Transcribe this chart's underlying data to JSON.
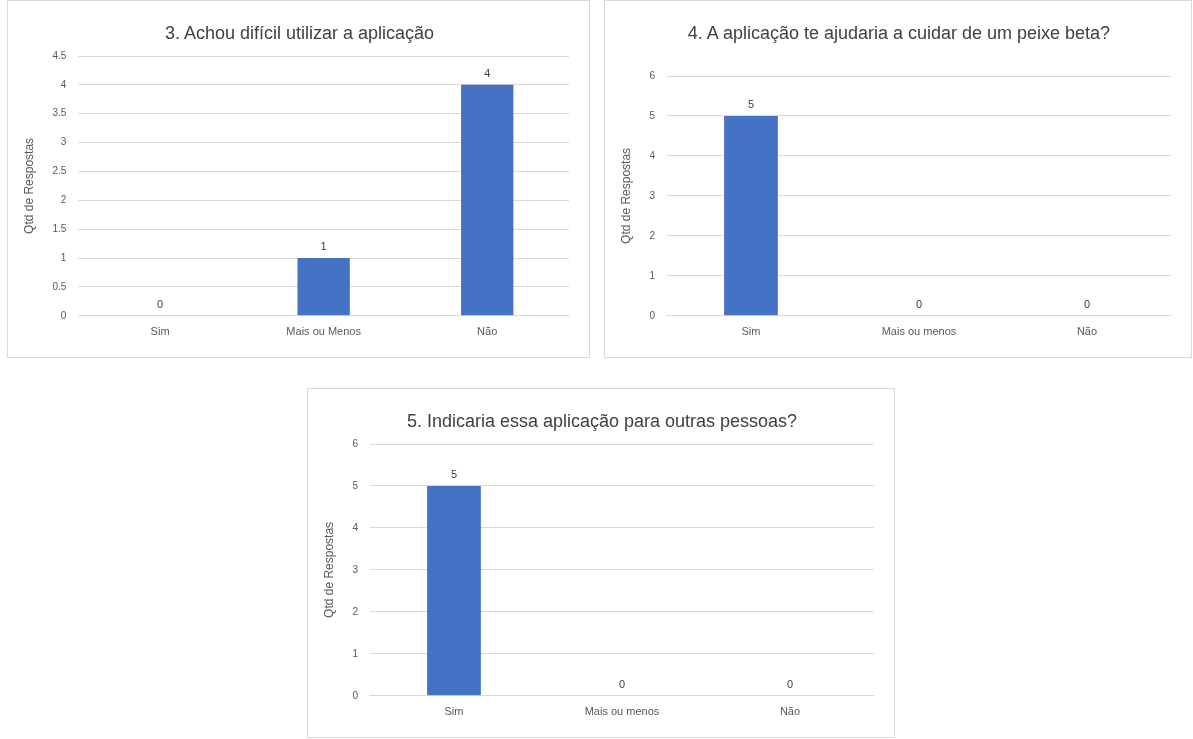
{
  "chart_data": [
    {
      "type": "bar",
      "title": "3. Achou difícil utilizar a aplicação",
      "ylabel": "Qtd de Respostas",
      "categories": [
        "Sim",
        "Mais ou Menos",
        "Não"
      ],
      "values": [
        0,
        1,
        4
      ],
      "color": "#4472c4",
      "ylim": [
        0,
        4.5
      ],
      "yticks": [
        0,
        0.5,
        1,
        1.5,
        2,
        2.5,
        3,
        3.5,
        4,
        4.5
      ],
      "grid": "y",
      "data_labels": true
    },
    {
      "type": "bar",
      "title": "4. A aplicação te ajudaria a cuidar de um peixe beta?",
      "ylabel": "Qtd de Respostas",
      "categories": [
        "Sim",
        "Mais ou menos",
        "Não"
      ],
      "values": [
        5,
        0,
        0
      ],
      "color": "#4472c4",
      "ylim": [
        0,
        6
      ],
      "yticks": [
        0,
        1,
        2,
        3,
        4,
        5,
        6
      ],
      "grid": "y",
      "data_labels": true
    },
    {
      "type": "bar",
      "title": "5. Indicaria essa aplicação para outras pessoas?",
      "ylabel": "Qtd de Respostas",
      "categories": [
        "Sim",
        "Mais ou menos",
        "Não"
      ],
      "values": [
        5,
        0,
        0
      ],
      "color": "#4472c4",
      "ylim": [
        0,
        6
      ],
      "yticks": [
        0,
        1,
        2,
        3,
        4,
        5,
        6
      ],
      "grid": "y",
      "data_labels": true
    }
  ]
}
